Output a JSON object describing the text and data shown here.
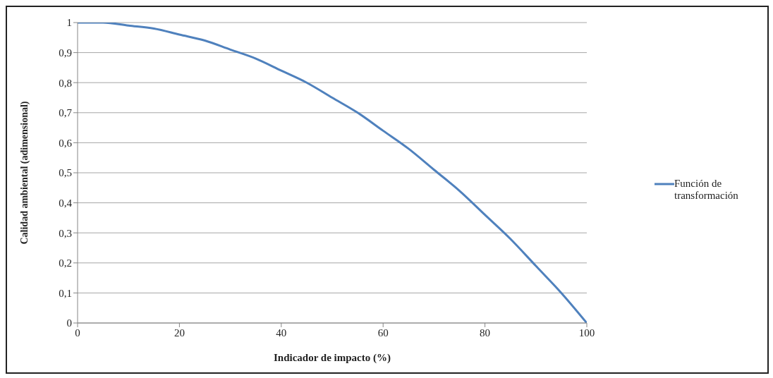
{
  "chart_data": {
    "type": "line",
    "xlabel": "Indicador de impacto (%)",
    "ylabel": "Calidad ambiental (adimensional)",
    "x": [
      0,
      5,
      10,
      15,
      20,
      25,
      30,
      35,
      40,
      45,
      50,
      55,
      60,
      65,
      70,
      75,
      80,
      85,
      90,
      95,
      100
    ],
    "series": [
      {
        "name": "Función de transformación",
        "color": "#4f81bd",
        "values": [
          1,
          1,
          0.99,
          0.98,
          0.96,
          0.94,
          0.91,
          0.88,
          0.84,
          0.8,
          0.75,
          0.7,
          0.64,
          0.58,
          0.51,
          0.44,
          0.36,
          0.28,
          0.19,
          0.1,
          0
        ]
      }
    ],
    "xlim": [
      0,
      100
    ],
    "xticks": [
      0,
      20,
      40,
      60,
      80,
      100
    ],
    "ylim": [
      0,
      1
    ],
    "yticks": [
      0,
      {
        "value": 0.1,
        "label": "0,1"
      },
      {
        "value": 0.2,
        "label": "0,2"
      },
      {
        "value": 0.3,
        "label": "0,3"
      },
      {
        "value": 0.4,
        "label": "0,4"
      },
      {
        "value": 0.5,
        "label": "0,5"
      },
      {
        "value": 0.6,
        "label": "0,6"
      },
      {
        "value": 0.7,
        "label": "0,7"
      },
      {
        "value": 0.8,
        "label": "0,8"
      },
      {
        "value": 0.9,
        "label": "0,9"
      },
      1
    ],
    "grid": "y",
    "legend": "right",
    "marker": "none",
    "line_style": "solid"
  }
}
